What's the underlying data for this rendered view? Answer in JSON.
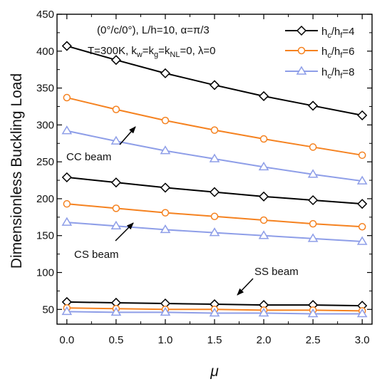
{
  "chart_data": {
    "type": "line",
    "xlabel": "μ",
    "ylabel": "Dimensionless Buckling Load",
    "xlim": [
      -0.1,
      3.1
    ],
    "ylim": [
      30,
      450
    ],
    "xticks": [
      "0.0",
      "0.5",
      "1.0",
      "1.5",
      "2.0",
      "2.5",
      "3.0"
    ],
    "yticks": [
      "50",
      "100",
      "150",
      "200",
      "250",
      "300",
      "350",
      "400",
      "450"
    ],
    "x": [
      0.0,
      0.5,
      1.0,
      1.5,
      2.0,
      2.5,
      3.0
    ],
    "legend_position": "top-right",
    "series": [
      {
        "name": "hc/hf=4",
        "label_main": "h",
        "label_sub1": "c",
        "label_mid": "/h",
        "label_sub2": "f",
        "label_end": "=4",
        "color": "#000000",
        "marker": "diamond",
        "group": "CC",
        "values": [
          407,
          388,
          370,
          354,
          339,
          326,
          313
        ]
      },
      {
        "name": "hc/hf=6",
        "label_main": "h",
        "label_sub1": "c",
        "label_mid": "/h",
        "label_sub2": "f",
        "label_end": "=6",
        "color": "#f58220",
        "marker": "circle",
        "group": "CC",
        "values": [
          337,
          321,
          306,
          293,
          281,
          270,
          259
        ]
      },
      {
        "name": "hc/hf=8",
        "label_main": "h",
        "label_sub1": "c",
        "label_mid": "/h",
        "label_sub2": "f",
        "label_end": "=8",
        "color": "#8e9ee8",
        "marker": "triangle",
        "group": "CC",
        "values": [
          292,
          278,
          265,
          254,
          243,
          233,
          224
        ]
      },
      {
        "name": "hc/hf=4",
        "color": "#000000",
        "marker": "diamond",
        "group": "CS",
        "values": [
          229,
          222,
          215,
          209,
          203,
          198,
          193
        ]
      },
      {
        "name": "hc/hf=6",
        "color": "#f58220",
        "marker": "circle",
        "group": "CS",
        "values": [
          193,
          187,
          181,
          176,
          171,
          166,
          162
        ]
      },
      {
        "name": "hc/hf=8",
        "color": "#8e9ee8",
        "marker": "triangle",
        "group": "CS",
        "values": [
          168,
          163,
          158,
          154,
          150,
          146,
          142
        ]
      },
      {
        "name": "hc/hf=4",
        "color": "#000000",
        "marker": "diamond",
        "group": "SS",
        "values": [
          60,
          59,
          58,
          57,
          56,
          56,
          55
        ]
      },
      {
        "name": "hc/hf=6",
        "color": "#f58220",
        "marker": "circle",
        "group": "SS",
        "values": [
          52,
          51,
          50,
          50,
          49,
          49,
          48
        ]
      },
      {
        "name": "hc/hf=8",
        "color": "#8e9ee8",
        "marker": "triangle",
        "group": "SS",
        "values": [
          47,
          46,
          46,
          45,
          45,
          44,
          44
        ]
      }
    ],
    "annotations": {
      "params_line1": "(0°/c/0°), L/h=10, α=π/3",
      "params_line2_a": "T=300K, k",
      "params_line2_sub1": "w",
      "params_line2_b": "=k",
      "params_line2_sub2": "g",
      "params_line2_c": "=k",
      "params_line2_sub3": "NL",
      "params_line2_d": "=0, λ=0",
      "cc_label": "CC beam",
      "cs_label": "CS beam",
      "ss_label": "SS beam"
    }
  }
}
